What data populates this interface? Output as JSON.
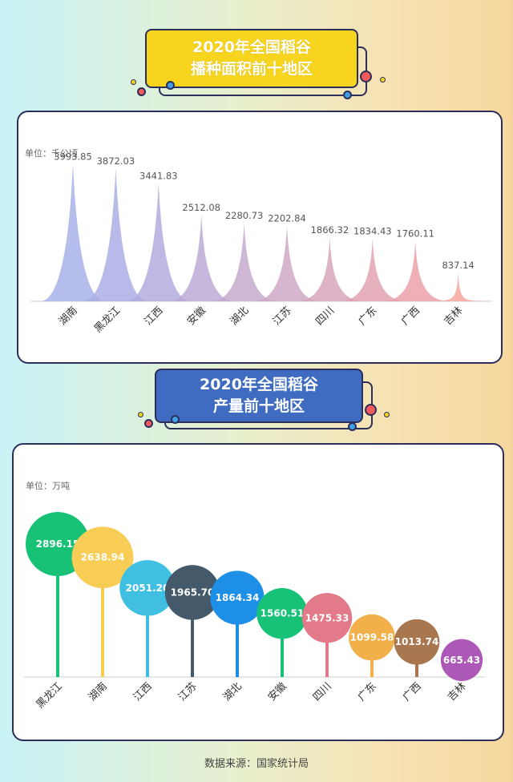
{
  "section1": {
    "title_line1": "2020年全国稻谷",
    "title_line2": "播种面积前十地区",
    "unit": "单位：千公顷"
  },
  "section2": {
    "title_line1": "2020年全国稻谷",
    "title_line2": "产量前十地区",
    "unit": "单位：万吨"
  },
  "source": "数据来源：国家统计局",
  "chart_data": [
    {
      "type": "area",
      "unit": "千公顷",
      "categories": [
        "湖南",
        "黑龙江",
        "江西",
        "安徽",
        "湖北",
        "江苏",
        "四川",
        "广东",
        "广西",
        "吉林"
      ],
      "values": [
        3993.85,
        3872.03,
        3441.83,
        2512.08,
        2280.73,
        2202.84,
        1866.32,
        1834.43,
        1760.11,
        837.14
      ],
      "value_labels": [
        "3993.85",
        "3872.03",
        "3441.83",
        "2512.08",
        "2280.73",
        "2202.84",
        "1866.32",
        "1834.43",
        "1760.11",
        "837.14"
      ],
      "colors": [
        "#a4aee8",
        "#a8ace4",
        "#b0aadd",
        "#baa8d5",
        "#c3a6cc",
        "#cda5c3",
        "#d6a2b8",
        "#e0a0af",
        "#eb9ea6",
        "#f5a29a"
      ],
      "ylim": [
        0,
        4100
      ]
    },
    {
      "type": "scatter",
      "unit": "万吨",
      "categories": [
        "黑龙江",
        "湖南",
        "江西",
        "江苏",
        "湖北",
        "安徽",
        "四川",
        "广东",
        "广西",
        "吉林"
      ],
      "values": [
        2896.15,
        2638.94,
        2051.2,
        1965.7,
        1864.34,
        1560.51,
        1475.33,
        1099.58,
        1013.74,
        665.43
      ],
      "value_labels": [
        "2896.15",
        "2638.94",
        "2051.20",
        "1965.70",
        "1864.34",
        "1560.51",
        "1475.33",
        "1099.58",
        "1013.74",
        "665.43"
      ],
      "colors": [
        "#17c277",
        "#f7cd55",
        "#3fc0e3",
        "#445a6b",
        "#1e8fe6",
        "#17c277",
        "#e27a8a",
        "#f2b04a",
        "#a8774f",
        "#ab58b7"
      ],
      "ylim": [
        0,
        3150
      ]
    }
  ]
}
